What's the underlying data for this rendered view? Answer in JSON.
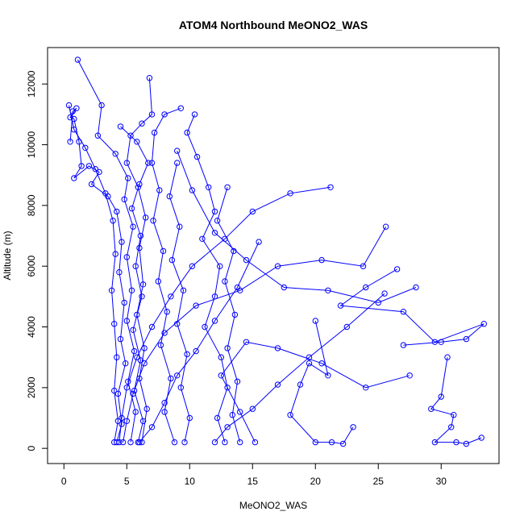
{
  "chart_data": {
    "type": "scatter",
    "title": "ATOM4 Northbound MeONO2_WAS",
    "xlabel": "MeONO2_WAS",
    "ylabel": "Altitude (m)",
    "xlim": [
      -1.3,
      34.6
    ],
    "ylim": [
      -500,
      13200
    ],
    "x_ticks": [
      0,
      5,
      10,
      15,
      20,
      25,
      30
    ],
    "y_ticks": [
      0,
      2000,
      4000,
      6000,
      8000,
      10000,
      12000
    ],
    "grid": false,
    "marker": "open-circle",
    "connected": true,
    "color": "#0000ff",
    "series": [
      {
        "values": [
          {
            "x": 0.5,
            "y": 10100
          },
          {
            "x": 0.7,
            "y": 11100
          },
          {
            "x": 1.0,
            "y": 11200
          },
          {
            "x": 0.5,
            "y": 10900
          },
          {
            "x": 0.8,
            "y": 10850
          },
          {
            "x": 1.2,
            "y": 10100
          },
          {
            "x": 1.4,
            "y": 9300
          },
          {
            "x": 0.8,
            "y": 8900
          },
          {
            "x": 2.0,
            "y": 9300
          },
          {
            "x": 2.8,
            "y": 9100
          },
          {
            "x": 2.2,
            "y": 8700
          },
          {
            "x": 3.5,
            "y": 8300
          },
          {
            "x": 4.2,
            "y": 7800
          },
          {
            "x": 4.6,
            "y": 6800
          },
          {
            "x": 4.4,
            "y": 5800
          },
          {
            "x": 4.8,
            "y": 4800
          },
          {
            "x": 4.5,
            "y": 3600
          },
          {
            "x": 4.9,
            "y": 2800
          },
          {
            "x": 4.3,
            "y": 1800
          },
          {
            "x": 4.6,
            "y": 800
          },
          {
            "x": 4.2,
            "y": 200
          }
        ]
      },
      {
        "values": [
          {
            "x": 1.1,
            "y": 12800
          },
          {
            "x": 3.0,
            "y": 11300
          },
          {
            "x": 2.7,
            "y": 10300
          },
          {
            "x": 4.1,
            "y": 9700
          },
          {
            "x": 5.1,
            "y": 8900
          },
          {
            "x": 4.8,
            "y": 8200
          },
          {
            "x": 5.5,
            "y": 7300
          },
          {
            "x": 5.0,
            "y": 6300
          },
          {
            "x": 5.4,
            "y": 5200
          },
          {
            "x": 5.0,
            "y": 4200
          },
          {
            "x": 5.6,
            "y": 3200
          },
          {
            "x": 5.1,
            "y": 2200
          },
          {
            "x": 5.7,
            "y": 1200
          },
          {
            "x": 5.3,
            "y": 200
          }
        ]
      },
      {
        "values": [
          {
            "x": 6.8,
            "y": 12200
          },
          {
            "x": 7.0,
            "y": 11000
          },
          {
            "x": 6.2,
            "y": 10700
          },
          {
            "x": 5.3,
            "y": 10300
          },
          {
            "x": 5.0,
            "y": 9400
          },
          {
            "x": 5.9,
            "y": 8600
          },
          {
            "x": 6.5,
            "y": 7600
          },
          {
            "x": 6.0,
            "y": 6600
          },
          {
            "x": 6.3,
            "y": 5400
          },
          {
            "x": 5.8,
            "y": 4400
          },
          {
            "x": 6.4,
            "y": 3300
          },
          {
            "x": 6.0,
            "y": 2300
          },
          {
            "x": 6.6,
            "y": 1300
          },
          {
            "x": 6.2,
            "y": 200
          }
        ]
      },
      {
        "values": [
          {
            "x": 9.3,
            "y": 11200
          },
          {
            "x": 8.0,
            "y": 11000
          },
          {
            "x": 7.2,
            "y": 10400
          },
          {
            "x": 7.0,
            "y": 9400
          },
          {
            "x": 7.6,
            "y": 8500
          },
          {
            "x": 7.1,
            "y": 7500
          },
          {
            "x": 7.9,
            "y": 6500
          },
          {
            "x": 7.5,
            "y": 5500
          },
          {
            "x": 8.2,
            "y": 4500
          },
          {
            "x": 7.7,
            "y": 3400
          },
          {
            "x": 8.5,
            "y": 2300
          },
          {
            "x": 8.0,
            "y": 1200
          },
          {
            "x": 8.8,
            "y": 200
          }
        ]
      },
      {
        "values": [
          {
            "x": 10.4,
            "y": 11000
          },
          {
            "x": 9.8,
            "y": 10400
          },
          {
            "x": 10.6,
            "y": 9600
          },
          {
            "x": 11.5,
            "y": 8600
          },
          {
            "x": 12.0,
            "y": 7800
          },
          {
            "x": 11.0,
            "y": 6900
          },
          {
            "x": 12.4,
            "y": 6000
          },
          {
            "x": 12.0,
            "y": 5000
          },
          {
            "x": 11.2,
            "y": 4000
          },
          {
            "x": 12.5,
            "y": 3000
          },
          {
            "x": 13.0,
            "y": 2000
          },
          {
            "x": 12.2,
            "y": 1000
          },
          {
            "x": 12.8,
            "y": 200
          }
        ]
      },
      {
        "values": [
          {
            "x": 21.2,
            "y": 8600
          },
          {
            "x": 18.0,
            "y": 8400
          },
          {
            "x": 15.0,
            "y": 7800
          },
          {
            "x": 12.8,
            "y": 6900
          },
          {
            "x": 10.2,
            "y": 6000
          },
          {
            "x": 8.5,
            "y": 5000
          },
          {
            "x": 7.0,
            "y": 4000
          },
          {
            "x": 5.8,
            "y": 3000
          },
          {
            "x": 5.0,
            "y": 2000
          },
          {
            "x": 4.6,
            "y": 1000
          },
          {
            "x": 4.4,
            "y": 200
          }
        ]
      },
      {
        "values": [
          {
            "x": 25.6,
            "y": 7300
          },
          {
            "x": 23.8,
            "y": 6000
          },
          {
            "x": 20.5,
            "y": 6200
          },
          {
            "x": 17.0,
            "y": 6000
          },
          {
            "x": 14.0,
            "y": 5200
          },
          {
            "x": 10.5,
            "y": 4700
          },
          {
            "x": 8.0,
            "y": 3800
          },
          {
            "x": 6.4,
            "y": 2800
          },
          {
            "x": 5.5,
            "y": 1800
          },
          {
            "x": 5.0,
            "y": 900
          },
          {
            "x": 4.7,
            "y": 200
          }
        ]
      },
      {
        "values": [
          {
            "x": 26.5,
            "y": 5900
          },
          {
            "x": 24.0,
            "y": 5300
          },
          {
            "x": 22.0,
            "y": 4700
          },
          {
            "x": 27.0,
            "y": 4500
          },
          {
            "x": 29.5,
            "y": 3500
          },
          {
            "x": 33.4,
            "y": 4100
          },
          {
            "x": 32.0,
            "y": 3600
          },
          {
            "x": 30.0,
            "y": 3500
          },
          {
            "x": 27.0,
            "y": 3400
          }
        ]
      },
      {
        "values": [
          {
            "x": 30.5,
            "y": 3000
          },
          {
            "x": 30.0,
            "y": 1700
          },
          {
            "x": 29.2,
            "y": 1300
          },
          {
            "x": 31.0,
            "y": 1100
          },
          {
            "x": 30.8,
            "y": 700
          },
          {
            "x": 29.5,
            "y": 200
          },
          {
            "x": 31.2,
            "y": 200
          },
          {
            "x": 32.0,
            "y": 150
          },
          {
            "x": 33.2,
            "y": 350
          }
        ]
      },
      {
        "values": [
          {
            "x": 20.0,
            "y": 4200
          },
          {
            "x": 21.0,
            "y": 2400
          },
          {
            "x": 19.5,
            "y": 2800
          },
          {
            "x": 18.8,
            "y": 2100
          },
          {
            "x": 18.0,
            "y": 1100
          },
          {
            "x": 20.0,
            "y": 200
          },
          {
            "x": 21.3,
            "y": 200
          },
          {
            "x": 22.2,
            "y": 150
          },
          {
            "x": 23.0,
            "y": 700
          }
        ]
      },
      {
        "values": [
          {
            "x": 25.5,
            "y": 5100
          },
          {
            "x": 22.5,
            "y": 4000
          },
          {
            "x": 19.5,
            "y": 3000
          },
          {
            "x": 17.0,
            "y": 2100
          },
          {
            "x": 15.0,
            "y": 1300
          },
          {
            "x": 13.0,
            "y": 700
          },
          {
            "x": 12.0,
            "y": 200
          }
        ]
      },
      {
        "values": [
          {
            "x": 15.5,
            "y": 6800
          },
          {
            "x": 13.8,
            "y": 5300
          },
          {
            "x": 12.0,
            "y": 4200
          },
          {
            "x": 10.5,
            "y": 3200
          },
          {
            "x": 9.0,
            "y": 2400
          },
          {
            "x": 8.0,
            "y": 1500
          },
          {
            "x": 7.0,
            "y": 700
          },
          {
            "x": 6.0,
            "y": 200
          }
        ]
      },
      {
        "values": [
          {
            "x": 27.5,
            "y": 2400
          },
          {
            "x": 24.0,
            "y": 2000
          },
          {
            "x": 20.5,
            "y": 2800
          },
          {
            "x": 17.0,
            "y": 3300
          },
          {
            "x": 14.5,
            "y": 3500
          },
          {
            "x": 12.5,
            "y": 2400
          },
          {
            "x": 14.0,
            "y": 1200
          },
          {
            "x": 15.2,
            "y": 200
          }
        ]
      },
      {
        "values": [
          {
            "x": 28.0,
            "y": 5300
          },
          {
            "x": 25.0,
            "y": 4800
          },
          {
            "x": 21.0,
            "y": 5200
          },
          {
            "x": 17.5,
            "y": 5300
          },
          {
            "x": 14.5,
            "y": 6200
          },
          {
            "x": 12.0,
            "y": 7100
          },
          {
            "x": 10.2,
            "y": 8500
          },
          {
            "x": 9.0,
            "y": 9800
          }
        ]
      },
      {
        "values": [
          {
            "x": 0.4,
            "y": 11300
          },
          {
            "x": 0.8,
            "y": 10500
          },
          {
            "x": 1.7,
            "y": 9900
          },
          {
            "x": 2.5,
            "y": 9200
          },
          {
            "x": 3.3,
            "y": 8400
          },
          {
            "x": 3.9,
            "y": 7500
          },
          {
            "x": 4.1,
            "y": 6400
          },
          {
            "x": 3.8,
            "y": 5200
          },
          {
            "x": 4.0,
            "y": 4100
          },
          {
            "x": 4.2,
            "y": 3000
          },
          {
            "x": 4.0,
            "y": 1900
          },
          {
            "x": 4.3,
            "y": 900
          },
          {
            "x": 4.0,
            "y": 200
          }
        ]
      },
      {
        "values": [
          {
            "x": 4.5,
            "y": 10600
          },
          {
            "x": 5.8,
            "y": 10100
          },
          {
            "x": 6.7,
            "y": 9400
          },
          {
            "x": 6.0,
            "y": 8700
          },
          {
            "x": 5.4,
            "y": 7900
          },
          {
            "x": 6.1,
            "y": 7000
          },
          {
            "x": 5.7,
            "y": 6000
          },
          {
            "x": 6.2,
            "y": 5000
          },
          {
            "x": 5.5,
            "y": 3900
          },
          {
            "x": 6.1,
            "y": 2900
          },
          {
            "x": 5.6,
            "y": 1900
          },
          {
            "x": 6.3,
            "y": 900
          },
          {
            "x": 5.9,
            "y": 200
          }
        ]
      },
      {
        "values": [
          {
            "x": 9.0,
            "y": 9400
          },
          {
            "x": 8.4,
            "y": 8300
          },
          {
            "x": 9.2,
            "y": 7300
          },
          {
            "x": 8.6,
            "y": 6200
          },
          {
            "x": 9.5,
            "y": 5200
          },
          {
            "x": 9.0,
            "y": 4100
          },
          {
            "x": 9.8,
            "y": 3100
          },
          {
            "x": 9.3,
            "y": 2000
          },
          {
            "x": 10.0,
            "y": 1000
          },
          {
            "x": 9.6,
            "y": 200
          }
        ]
      },
      {
        "values": [
          {
            "x": 13.0,
            "y": 8600
          },
          {
            "x": 12.2,
            "y": 7500
          },
          {
            "x": 13.5,
            "y": 6500
          },
          {
            "x": 12.8,
            "y": 5500
          },
          {
            "x": 13.6,
            "y": 4400
          },
          {
            "x": 13.0,
            "y": 3300
          },
          {
            "x": 13.8,
            "y": 2200
          },
          {
            "x": 13.4,
            "y": 1100
          },
          {
            "x": 14.0,
            "y": 200
          }
        ]
      }
    ]
  }
}
